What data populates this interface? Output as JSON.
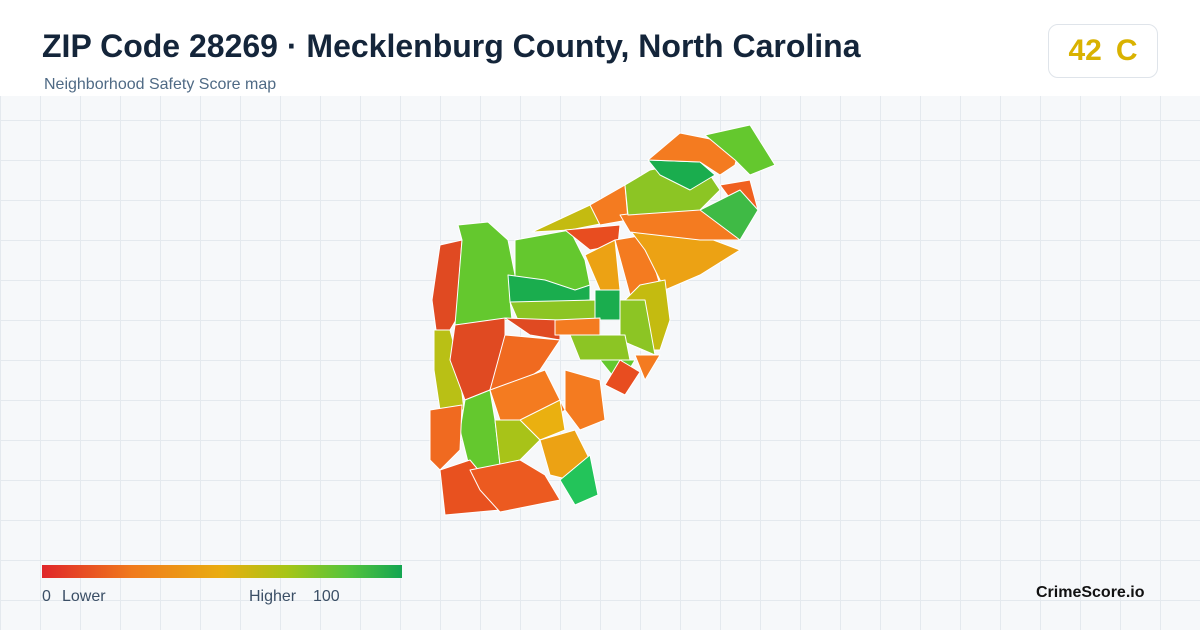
{
  "header": {
    "title": "ZIP Code 28269 · Mecklenburg County, North Carolina",
    "subtitle": "Neighborhood Safety Score map"
  },
  "score": {
    "value": "42",
    "grade": "C"
  },
  "legend": {
    "min": "0",
    "min_label": "Lower",
    "max_label": "Higher",
    "max": "100"
  },
  "footer": {
    "brand": "CrimeScore.io"
  }
}
